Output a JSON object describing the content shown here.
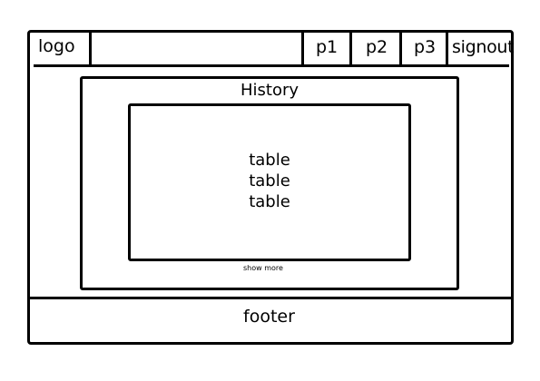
{
  "header": {
    "logo": "logo",
    "nav": [
      "p1",
      "p2",
      "p3"
    ],
    "signout": "signout"
  },
  "history": {
    "title": "History",
    "table_lines": [
      "table",
      "table",
      "table"
    ],
    "show_more": "show more"
  },
  "footer": {
    "text": "footer"
  }
}
